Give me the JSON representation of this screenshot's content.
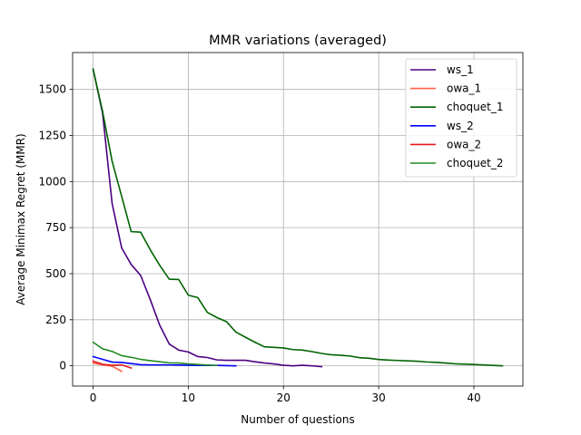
{
  "chart_data": {
    "type": "line",
    "title": "MMR variations (averaged)",
    "xlabel": "Number of questions",
    "ylabel": "Average Minimax Regret (MMR)",
    "xlim": [
      -2.15,
      45.15
    ],
    "ylim": [
      -110,
      1700
    ],
    "xticks": [
      0,
      10,
      20,
      30,
      40
    ],
    "yticks": [
      0,
      250,
      500,
      750,
      1000,
      1250,
      1500
    ],
    "grid": true,
    "legend_position": "top-right",
    "series": [
      {
        "name": "ws_1",
        "color": "#4b0082",
        "x": [
          0,
          1,
          2,
          3,
          4,
          5,
          6,
          7,
          8,
          9,
          10,
          11,
          12,
          13,
          14,
          15,
          16,
          17,
          18,
          19,
          20,
          21,
          22,
          23,
          24
        ],
        "y": [
          1610,
          1370,
          880,
          640,
          550,
          490,
          360,
          220,
          118,
          85,
          75,
          50,
          45,
          32,
          30,
          30,
          30,
          22,
          15,
          10,
          3,
          0,
          3,
          0,
          -5
        ]
      },
      {
        "name": "owa_1",
        "color": "#ff6347",
        "x": [
          0,
          1,
          2,
          3
        ],
        "y": [
          15,
          5,
          -2,
          -30
        ]
      },
      {
        "name": "choquet_1",
        "color": "#006400",
        "x": [
          0,
          1,
          2,
          3,
          4,
          5,
          6,
          7,
          8,
          9,
          10,
          11,
          12,
          13,
          14,
          15,
          16,
          17,
          18,
          19,
          20,
          21,
          22,
          23,
          24,
          25,
          26,
          27,
          28,
          29,
          30,
          31,
          32,
          33,
          34,
          35,
          36,
          37,
          38,
          39,
          40,
          41,
          42,
          43
        ],
        "y": [
          1610,
          1380,
          1110,
          920,
          728,
          725,
          630,
          545,
          470,
          468,
          383,
          370,
          290,
          262,
          240,
          183,
          155,
          128,
          103,
          100,
          97,
          88,
          85,
          77,
          67,
          60,
          57,
          53,
          44,
          41,
          34,
          31,
          29,
          27,
          25,
          21,
          19,
          15,
          11,
          9,
          7,
          5,
          2,
          0
        ]
      },
      {
        "name": "ws_2",
        "color": "#0000ff",
        "x": [
          0,
          1,
          2,
          3,
          4,
          5,
          6,
          7,
          8,
          9,
          10,
          11,
          12,
          13,
          14,
          15
        ],
        "y": [
          50,
          35,
          20,
          18,
          12,
          6,
          5,
          5,
          5,
          4,
          3,
          2,
          2,
          2,
          1,
          0
        ]
      },
      {
        "name": "owa_2",
        "color": "#e31a1c",
        "x": [
          0,
          1,
          2,
          3,
          4
        ],
        "y": [
          25,
          8,
          3,
          5,
          -12
        ]
      },
      {
        "name": "choquet_2",
        "color": "#228b22",
        "x": [
          0,
          1,
          2,
          3,
          4,
          5,
          6,
          7,
          8,
          9,
          10,
          11,
          12,
          13
        ],
        "y": [
          128,
          92,
          78,
          55,
          46,
          35,
          28,
          22,
          16,
          15,
          10,
          7,
          4,
          2
        ]
      }
    ]
  }
}
